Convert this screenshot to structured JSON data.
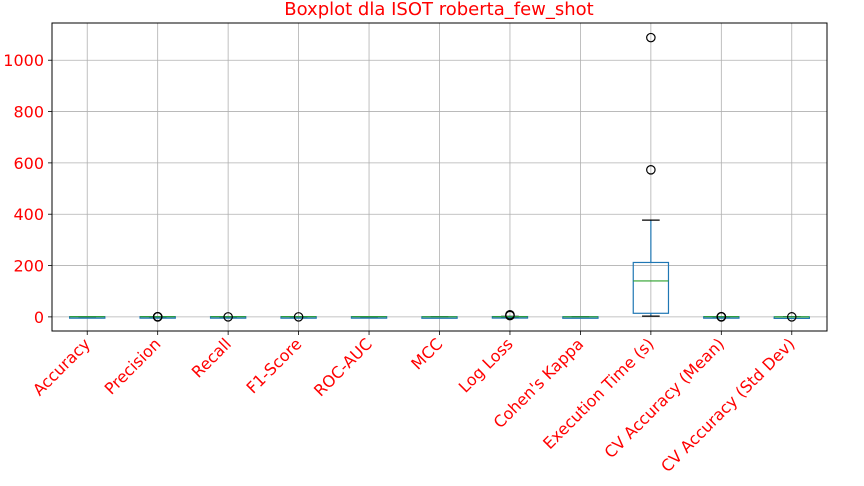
{
  "chart_data": {
    "type": "boxplot",
    "title": "Boxplot dla ISOT roberta_few_shot",
    "xlabel": "",
    "ylabel": "",
    "ylim": [
      -55,
      1145
    ],
    "yticks": [
      0,
      200,
      400,
      600,
      800,
      1000
    ],
    "grid": true,
    "colors": {
      "text": "#ff0000",
      "box": "#1f77b4",
      "median": "#2ca02c",
      "grid": "#b0b0b0",
      "axis": "#000000"
    },
    "categories": [
      "Accuracy",
      "Precision",
      "Recall",
      "F1-Score",
      "ROC-AUC",
      "MCC",
      "Log Loss",
      "Cohen's Kappa",
      "Execution Time (s)",
      "CV Accuracy (Mean)",
      "CV Accuracy (Std Dev)"
    ],
    "boxes": [
      {
        "label": "Accuracy",
        "whislo": 0.5,
        "q1": 0.6,
        "med": 0.7,
        "q3": 0.8,
        "whishi": 0.95,
        "fliers": []
      },
      {
        "label": "Precision",
        "whislo": 0.6,
        "q1": 0.7,
        "med": 0.8,
        "q3": 0.9,
        "whishi": 1.0,
        "fliers": [
          0.0,
          0.0,
          1.0
        ]
      },
      {
        "label": "Recall",
        "whislo": 0.4,
        "q1": 0.6,
        "med": 0.75,
        "q3": 0.9,
        "whishi": 1.0,
        "fliers": [
          0.0
        ]
      },
      {
        "label": "F1-Score",
        "whislo": 0.5,
        "q1": 0.6,
        "med": 0.7,
        "q3": 0.8,
        "whishi": 0.95,
        "fliers": [
          0.0
        ]
      },
      {
        "label": "ROC-AUC",
        "whislo": 0.5,
        "q1": 0.7,
        "med": 0.8,
        "q3": 0.9,
        "whishi": 1.0,
        "fliers": []
      },
      {
        "label": "MCC",
        "whislo": -0.2,
        "q1": 0.1,
        "med": 0.3,
        "q3": 0.5,
        "whishi": 0.9,
        "fliers": []
      },
      {
        "label": "Log Loss",
        "whislo": 0.3,
        "q1": 0.6,
        "med": 0.8,
        "q3": 1.2,
        "whishi": 2.0,
        "fliers": [
          5.0,
          8.0
        ]
      },
      {
        "label": "Cohen's Kappa",
        "whislo": -0.2,
        "q1": 0.1,
        "med": 0.3,
        "q3": 0.5,
        "whishi": 0.9,
        "fliers": []
      },
      {
        "label": "Execution Time (s)",
        "whislo": 3,
        "q1": 14,
        "med": 140,
        "q3": 212,
        "whishi": 377,
        "fliers": [
          573,
          1088
        ]
      },
      {
        "label": "CV Accuracy (Mean)",
        "whislo": 0.5,
        "q1": 0.6,
        "med": 0.7,
        "q3": 0.8,
        "whishi": 0.95,
        "fliers": [
          0.0,
          0.0,
          1.0
        ]
      },
      {
        "label": "CV Accuracy (Std Dev)",
        "whislo": 0.0,
        "q1": 0.01,
        "med": 0.02,
        "q3": 0.03,
        "whishi": 0.05,
        "fliers": [
          0.1
        ]
      }
    ]
  }
}
